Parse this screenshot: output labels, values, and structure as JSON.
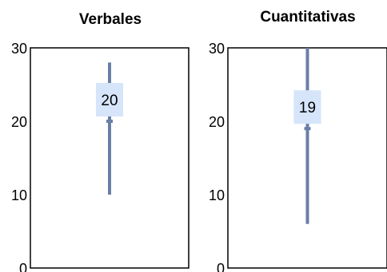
{
  "chart_data": [
    {
      "type": "range",
      "title": "Verbales",
      "xlabel": "",
      "ylabel": "",
      "ylim": [
        0,
        30
      ],
      "yticks": [
        "0",
        "10",
        "20",
        "30"
      ],
      "min": 10,
      "max": 28,
      "value": 20,
      "value_label": "20",
      "grid": false
    },
    {
      "type": "range",
      "title": "Cuantitativas",
      "xlabel": "",
      "ylabel": "",
      "ylim": [
        0,
        30
      ],
      "yticks": [
        "0",
        "10",
        "20",
        "30"
      ],
      "min": 6,
      "max": 30,
      "value": 19,
      "value_label": "19",
      "grid": false
    }
  ],
  "colors": {
    "range_line": "#6a7fa6",
    "label_box": "#d6e5fa",
    "axis": "#000000"
  }
}
